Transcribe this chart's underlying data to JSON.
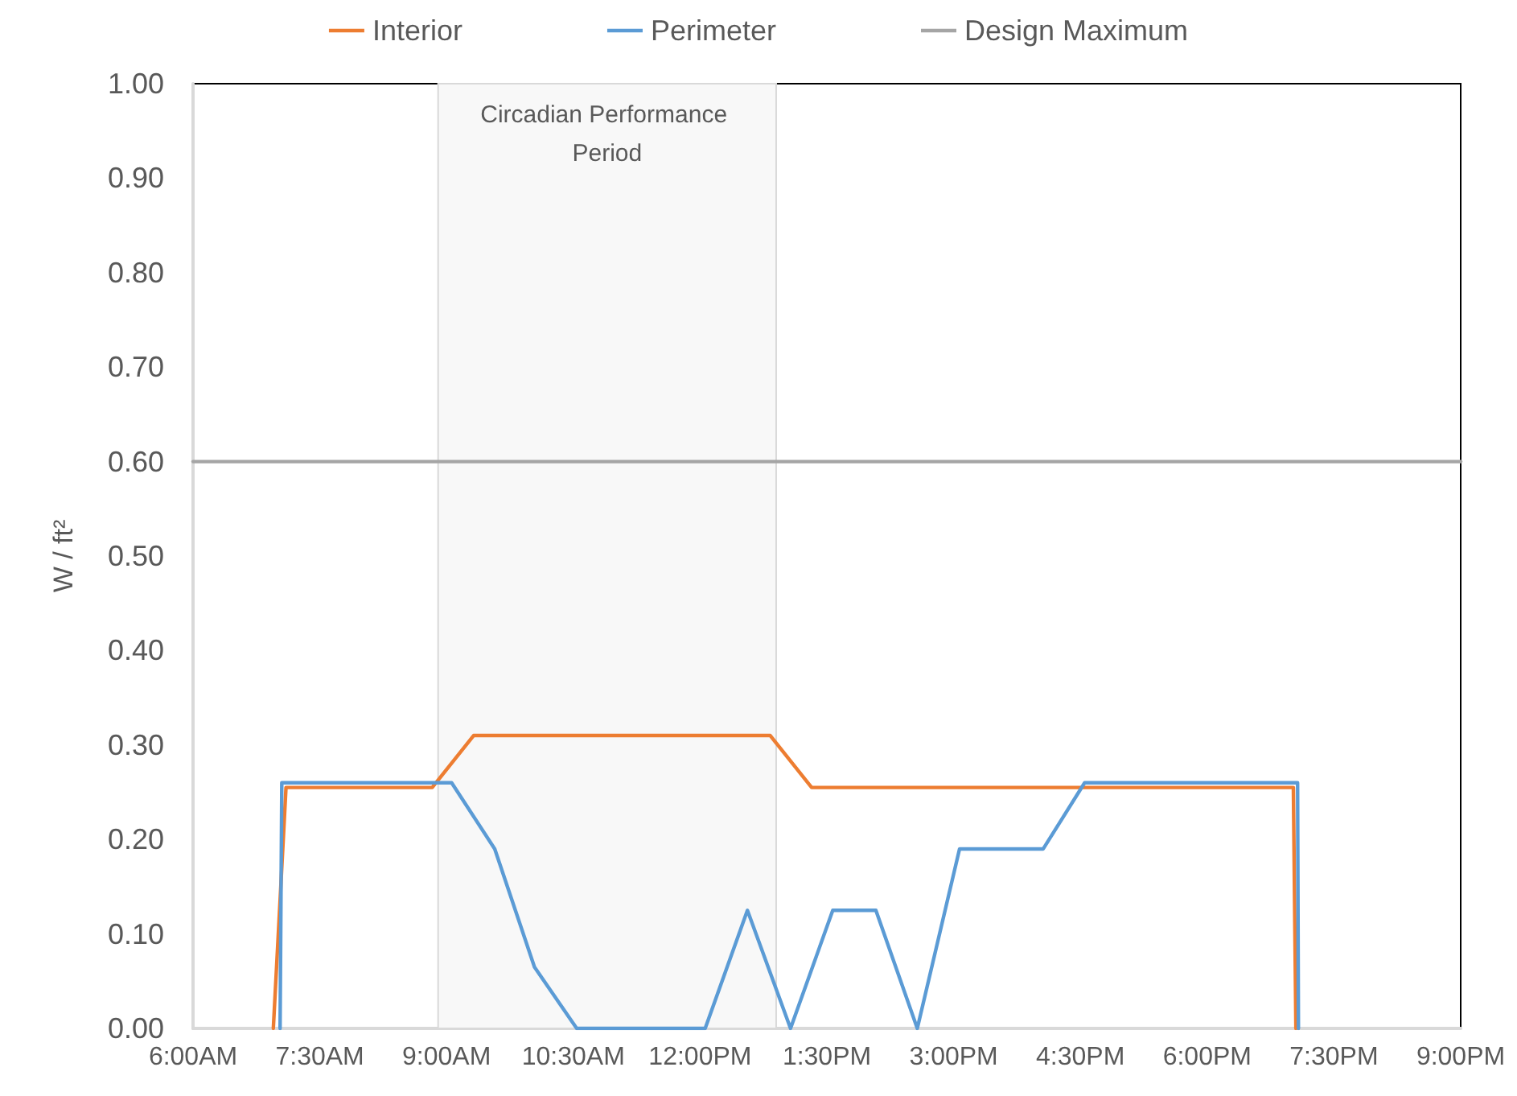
{
  "chart_data": {
    "type": "line",
    "ylabel": "W / ft²",
    "x": [
      6.95,
      7.1,
      8.83,
      9.32,
      12.83,
      13.32,
      19.02,
      19.05
    ],
    "series": [
      {
        "name": "Interior",
        "color": "#ed7d31",
        "values": [
          0,
          0.255,
          0.255,
          0.31,
          0.31,
          0.255,
          0.255,
          0
        ]
      },
      {
        "name": "Perimeter",
        "color": "#5b9bd5",
        "x": [
          7.03,
          7.05,
          9.06,
          9.57,
          10.04,
          10.54,
          12.06,
          12.56,
          13.07,
          13.57,
          14.08,
          14.57,
          15.07,
          16.06,
          16.55,
          19.07,
          19.08
        ],
        "values": [
          0,
          0.26,
          0.26,
          0.19,
          0.065,
          0,
          0,
          0.125,
          0,
          0.125,
          0.125,
          0,
          0.19,
          0.19,
          0.26,
          0.26,
          0
        ]
      },
      {
        "name": "Design Maximum",
        "color": "#a5a5a5",
        "x": [
          6,
          21
        ],
        "values": [
          0.6,
          0.6
        ]
      }
    ],
    "bands": [
      {
        "axis": "x",
        "from": 8.9,
        "to": 12.9,
        "label": "Circadian Performance Period",
        "color": "#f8f8f8"
      }
    ],
    "xlim": [
      6,
      21
    ],
    "xticks": [
      {
        "value": 6,
        "label": "6:00AM"
      },
      {
        "value": 7.5,
        "label": "7:30AM"
      },
      {
        "value": 9,
        "label": "9:00AM"
      },
      {
        "value": 10.5,
        "label": "10:30AM"
      },
      {
        "value": 12,
        "label": "12:00PM"
      },
      {
        "value": 13.5,
        "label": "1:30PM"
      },
      {
        "value": 15,
        "label": "3:00PM"
      },
      {
        "value": 16.5,
        "label": "4:30PM"
      },
      {
        "value": 18,
        "label": "6:00PM"
      },
      {
        "value": 19.5,
        "label": "7:30PM"
      },
      {
        "value": 21,
        "label": "9:00PM"
      }
    ],
    "ylim": [
      0,
      1
    ],
    "yticks": [
      {
        "value": 0,
        "label": "0.00"
      },
      {
        "value": 0.1,
        "label": "0.10"
      },
      {
        "value": 0.2,
        "label": "0.20"
      },
      {
        "value": 0.3,
        "label": "0.30"
      },
      {
        "value": 0.4,
        "label": "0.40"
      },
      {
        "value": 0.5,
        "label": "0.50"
      },
      {
        "value": 0.6,
        "label": "0.60"
      },
      {
        "value": 0.7,
        "label": "0.70"
      },
      {
        "value": 0.8,
        "label": "0.80"
      },
      {
        "value": 0.9,
        "label": "0.90"
      },
      {
        "value": 1,
        "label": "1.00"
      }
    ],
    "grid": false,
    "legend": "top",
    "marker": "none",
    "line_style": "solid"
  }
}
